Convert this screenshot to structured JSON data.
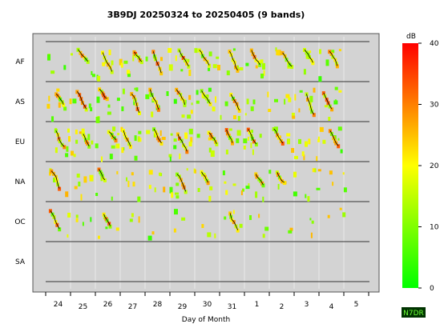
{
  "chart_data": {
    "type": "heatmap",
    "title": "3B9DJ 20250324 to 20250405 (9 bands)",
    "xlabel": "Day of Month",
    "ylabel": "",
    "regions": [
      "AF",
      "AS",
      "EU",
      "NA",
      "OC",
      "SA"
    ],
    "days": [
      "24",
      "25",
      "26",
      "27",
      "28",
      "29",
      "30",
      "31",
      "1",
      "2",
      "3",
      "4",
      "5"
    ],
    "colorbar": {
      "label": "dB",
      "ticks": [
        0,
        10,
        20,
        30,
        40
      ],
      "range": [
        0,
        40
      ],
      "colors": {
        "low": "#00ff00",
        "mid": "#ffff00",
        "high": "#ff0000"
      }
    },
    "panel_background": "#d3d3d3",
    "grid": true,
    "credit": "N7DR",
    "credit_colors": {
      "background": "#003300",
      "text": "#6cff36"
    }
  }
}
